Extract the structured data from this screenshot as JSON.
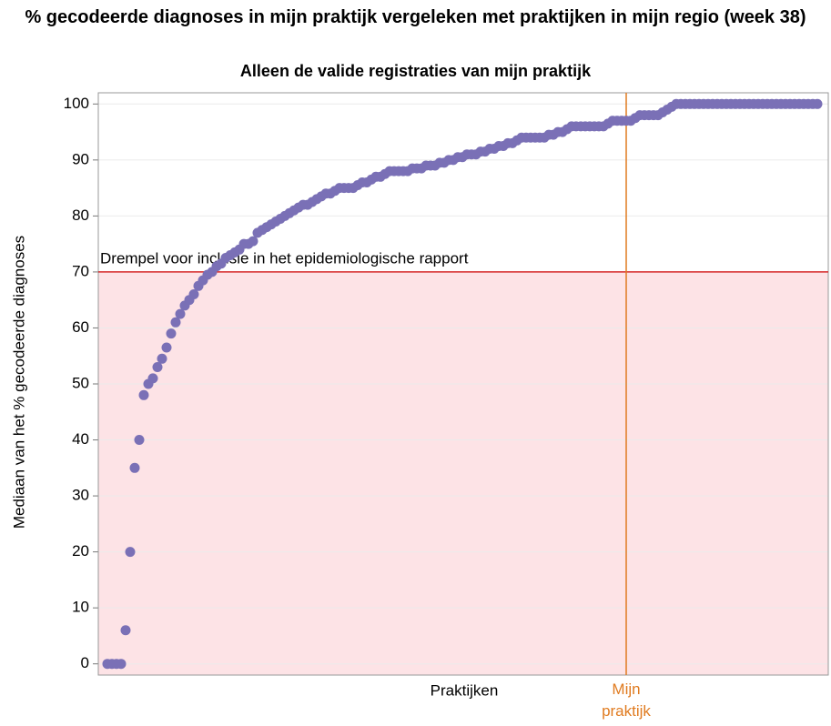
{
  "chart_data": {
    "type": "dot",
    "title": "% gecodeerde diagnoses in mijn praktijk vergeleken met praktijken in mijn regio (week 38)",
    "subtitle": "Alleen de valide registraties van mijn praktijk",
    "x_label": "Praktijken",
    "y_label": "Mediaan van het % gecodeerde diagnoses",
    "color": "#7a70b6",
    "ylim": [
      -2,
      102
    ],
    "yticks": [
      0,
      10,
      20,
      30,
      40,
      50,
      60,
      70,
      80,
      90,
      100
    ],
    "grid": true,
    "threshold": {
      "value": 70,
      "label": "Drempel voor inclusie in het epidemiologische rapport",
      "color": "#d62728",
      "fill": "#fde3e6"
    },
    "my_practice": {
      "label": "Mijn praktijk",
      "index": 114,
      "color": "#e07b20"
    },
    "values": [
      0,
      0,
      0,
      0,
      6,
      20,
      35,
      40,
      48,
      50,
      51,
      53,
      54.5,
      56.5,
      59,
      61,
      62.5,
      64,
      65,
      66,
      67.5,
      68.5,
      69.5,
      70,
      71,
      71.5,
      72.5,
      73,
      73.5,
      74,
      75,
      75,
      75.5,
      77,
      77.5,
      78,
      78.5,
      79,
      79.5,
      80,
      80.5,
      81,
      81.5,
      82,
      82,
      82.5,
      83,
      83.5,
      84,
      84,
      84.5,
      85,
      85,
      85,
      85,
      85.5,
      86,
      86,
      86.5,
      87,
      87,
      87.5,
      88,
      88,
      88,
      88,
      88,
      88.5,
      88.5,
      88.5,
      89,
      89,
      89,
      89.5,
      89.5,
      90,
      90,
      90.5,
      90.5,
      91,
      91,
      91,
      91.5,
      91.5,
      92,
      92,
      92.5,
      92.5,
      93,
      93,
      93.5,
      94,
      94,
      94,
      94,
      94,
      94,
      94.5,
      94.5,
      95,
      95,
      95.5,
      96,
      96,
      96,
      96,
      96,
      96,
      96,
      96,
      96.5,
      97,
      97,
      97,
      97,
      97,
      97.5,
      98,
      98,
      98,
      98,
      98,
      98.5,
      99,
      99.5,
      100,
      100,
      100,
      100,
      100,
      100,
      100,
      100,
      100,
      100,
      100,
      100,
      100,
      100,
      100,
      100,
      100,
      100,
      100,
      100,
      100,
      100,
      100,
      100,
      100,
      100,
      100,
      100,
      100,
      100,
      100,
      100
    ]
  }
}
